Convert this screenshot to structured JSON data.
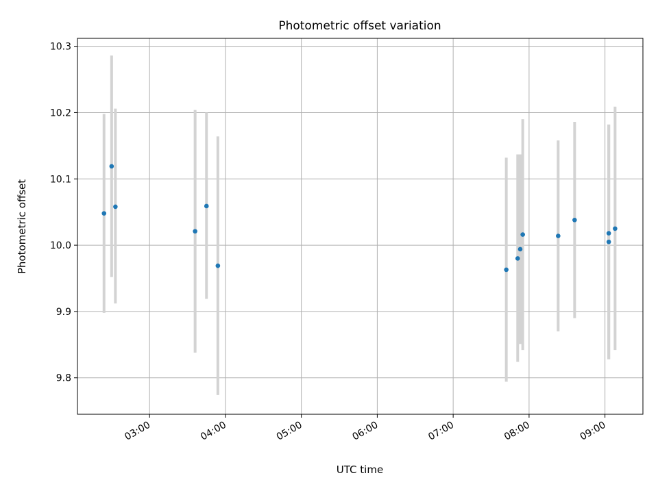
{
  "chart_data": {
    "type": "scatter",
    "title": "Photometric offset variation",
    "xlabel": "UTC time",
    "ylabel": "Photometric offset",
    "x_ticks": [
      "03:00",
      "04:00",
      "05:00",
      "06:00",
      "07:00",
      "08:00",
      "09:00"
    ],
    "y_ticks": [
      "9.8",
      "9.9",
      "10.0",
      "10.1",
      "10.2",
      "10.3"
    ],
    "xlim": [
      "02:03",
      "09:30"
    ],
    "ylim": [
      9.745,
      10.312
    ],
    "grid": true,
    "point_color": "#1f77b4",
    "errorbar_color": "#d3d3d3",
    "points": [
      {
        "x": "02:24",
        "y": 10.048,
        "ylow": 9.898,
        "yhigh": 10.198
      },
      {
        "x": "02:30",
        "y": 10.119,
        "ylow": 9.952,
        "yhigh": 10.286
      },
      {
        "x": "02:33",
        "y": 10.058,
        "ylow": 9.912,
        "yhigh": 10.206
      },
      {
        "x": "03:36",
        "y": 10.021,
        "ylow": 9.838,
        "yhigh": 10.204
      },
      {
        "x": "03:45",
        "y": 10.059,
        "ylow": 9.919,
        "yhigh": 10.2
      },
      {
        "x": "03:54",
        "y": 9.969,
        "ylow": 9.774,
        "yhigh": 10.164
      },
      {
        "x": "07:42",
        "y": 9.963,
        "ylow": 9.794,
        "yhigh": 10.132
      },
      {
        "x": "07:51",
        "y": 9.98,
        "ylow": 9.824,
        "yhigh": 10.137
      },
      {
        "x": "07:53",
        "y": 9.994,
        "ylow": 9.851,
        "yhigh": 10.137
      },
      {
        "x": "07:55",
        "y": 10.016,
        "ylow": 9.842,
        "yhigh": 10.19
      },
      {
        "x": "08:23",
        "y": 10.014,
        "ylow": 9.87,
        "yhigh": 10.158
      },
      {
        "x": "08:36",
        "y": 10.038,
        "ylow": 9.89,
        "yhigh": 10.186
      },
      {
        "x": "09:03",
        "y": 10.005,
        "ylow": 9.828,
        "yhigh": 10.182
      },
      {
        "x": "09:03",
        "y": 10.018,
        "ylow": 9.828,
        "yhigh": 10.182
      },
      {
        "x": "09:08",
        "y": 10.025,
        "ylow": 9.842,
        "yhigh": 10.209
      }
    ]
  }
}
